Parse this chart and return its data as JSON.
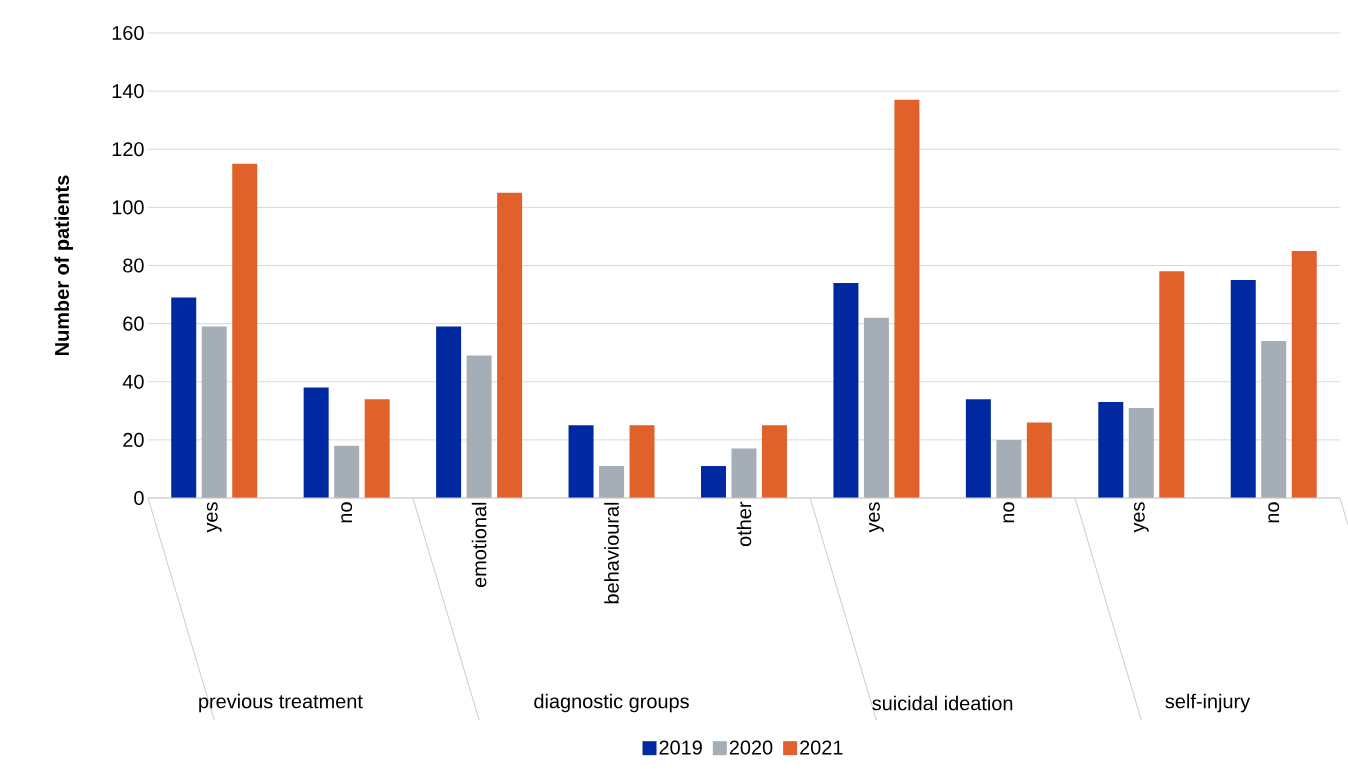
{
  "chart_data": {
    "type": "bar",
    "ylabel": "Number of patients",
    "categories": [
      "yes",
      "no",
      "emotional",
      "behavioural",
      "other",
      "yes",
      "no",
      "yes",
      "no"
    ],
    "series": [
      {
        "name": "2019",
        "color": "#0028a0",
        "values": [
          69,
          38,
          59,
          25,
          11,
          74,
          34,
          33,
          75
        ]
      },
      {
        "name": "2020",
        "color": "#a5adb6",
        "values": [
          59,
          18,
          49,
          11,
          17,
          62,
          20,
          31,
          54
        ]
      },
      {
        "name": "2021",
        "color": "#e0622a",
        "values": [
          115,
          34,
          105,
          25,
          25,
          137,
          26,
          78,
          85
        ]
      }
    ],
    "annotations": [
      "previous treatment",
      "diagnostic groups",
      "suicidal ideation",
      "self-injury"
    ],
    "ylim": [
      0,
      160
    ],
    "yticks": [
      0,
      20,
      40,
      60,
      80,
      100,
      120,
      140,
      160
    ],
    "grid": "y",
    "legend": "bottom"
  }
}
